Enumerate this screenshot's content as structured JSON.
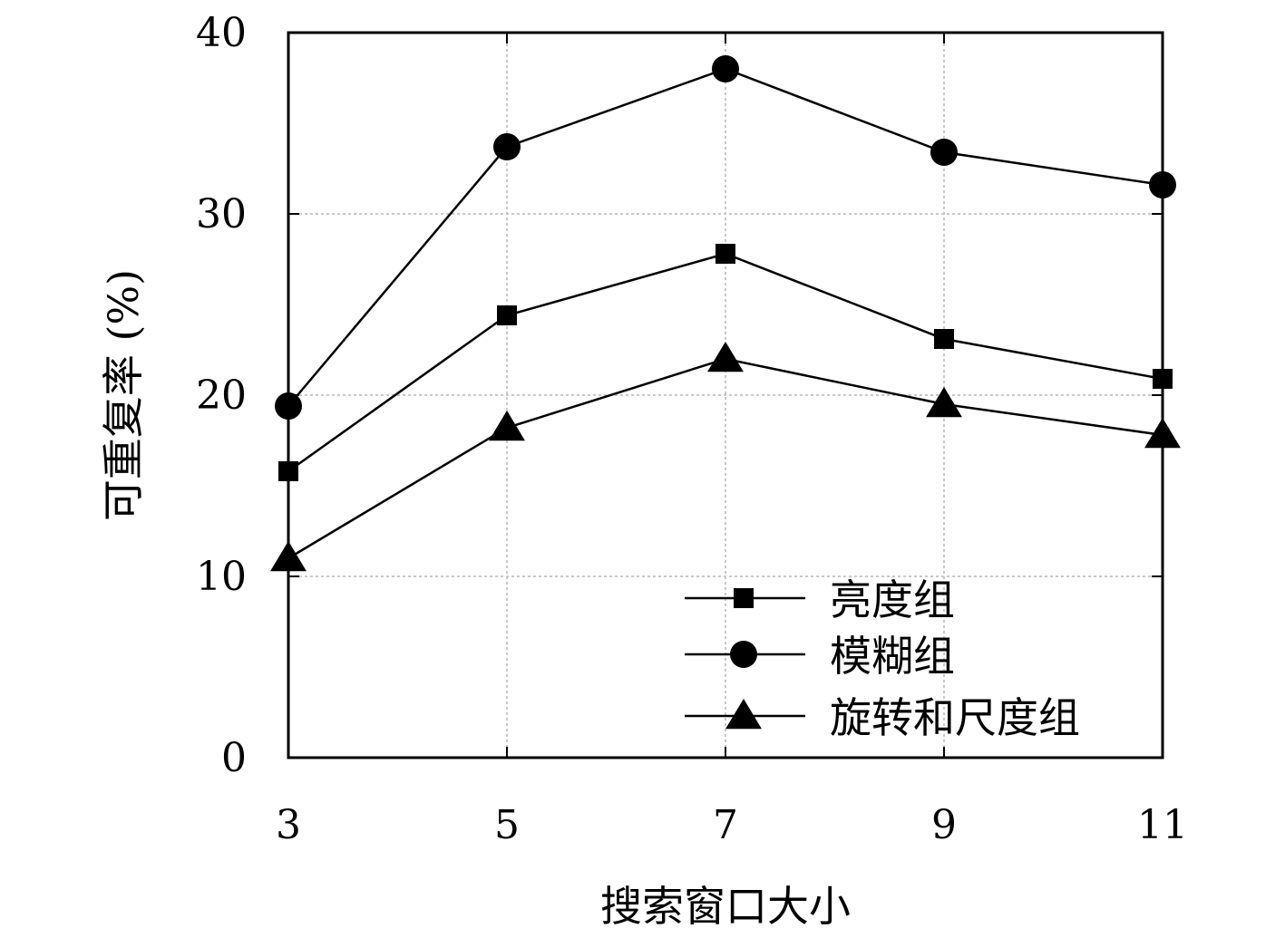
{
  "chart_data": {
    "type": "line",
    "xlabel": "搜索窗口大小",
    "ylabel": "可重复率 (%)",
    "x": [
      3,
      5,
      7,
      9,
      11
    ],
    "xlim": [
      3,
      11
    ],
    "ylim": [
      0,
      40
    ],
    "y_ticks": [
      0,
      10,
      20,
      30,
      40
    ],
    "grid": true,
    "legend_position": "bottom-right",
    "series": [
      {
        "name": "亮度组",
        "marker": "square",
        "values": [
          15.8,
          24.4,
          27.8,
          23.1,
          20.9
        ]
      },
      {
        "name": "模糊组",
        "marker": "circle",
        "values": [
          19.4,
          33.7,
          38.0,
          33.4,
          31.6
        ]
      },
      {
        "name": "旋转和尺度组",
        "marker": "triangle",
        "values": [
          11.0,
          18.2,
          22.0,
          19.5,
          17.8
        ]
      }
    ],
    "colors": {
      "line": "#000000",
      "grid": "#c8c8c8",
      "background": "#ffffff"
    }
  }
}
